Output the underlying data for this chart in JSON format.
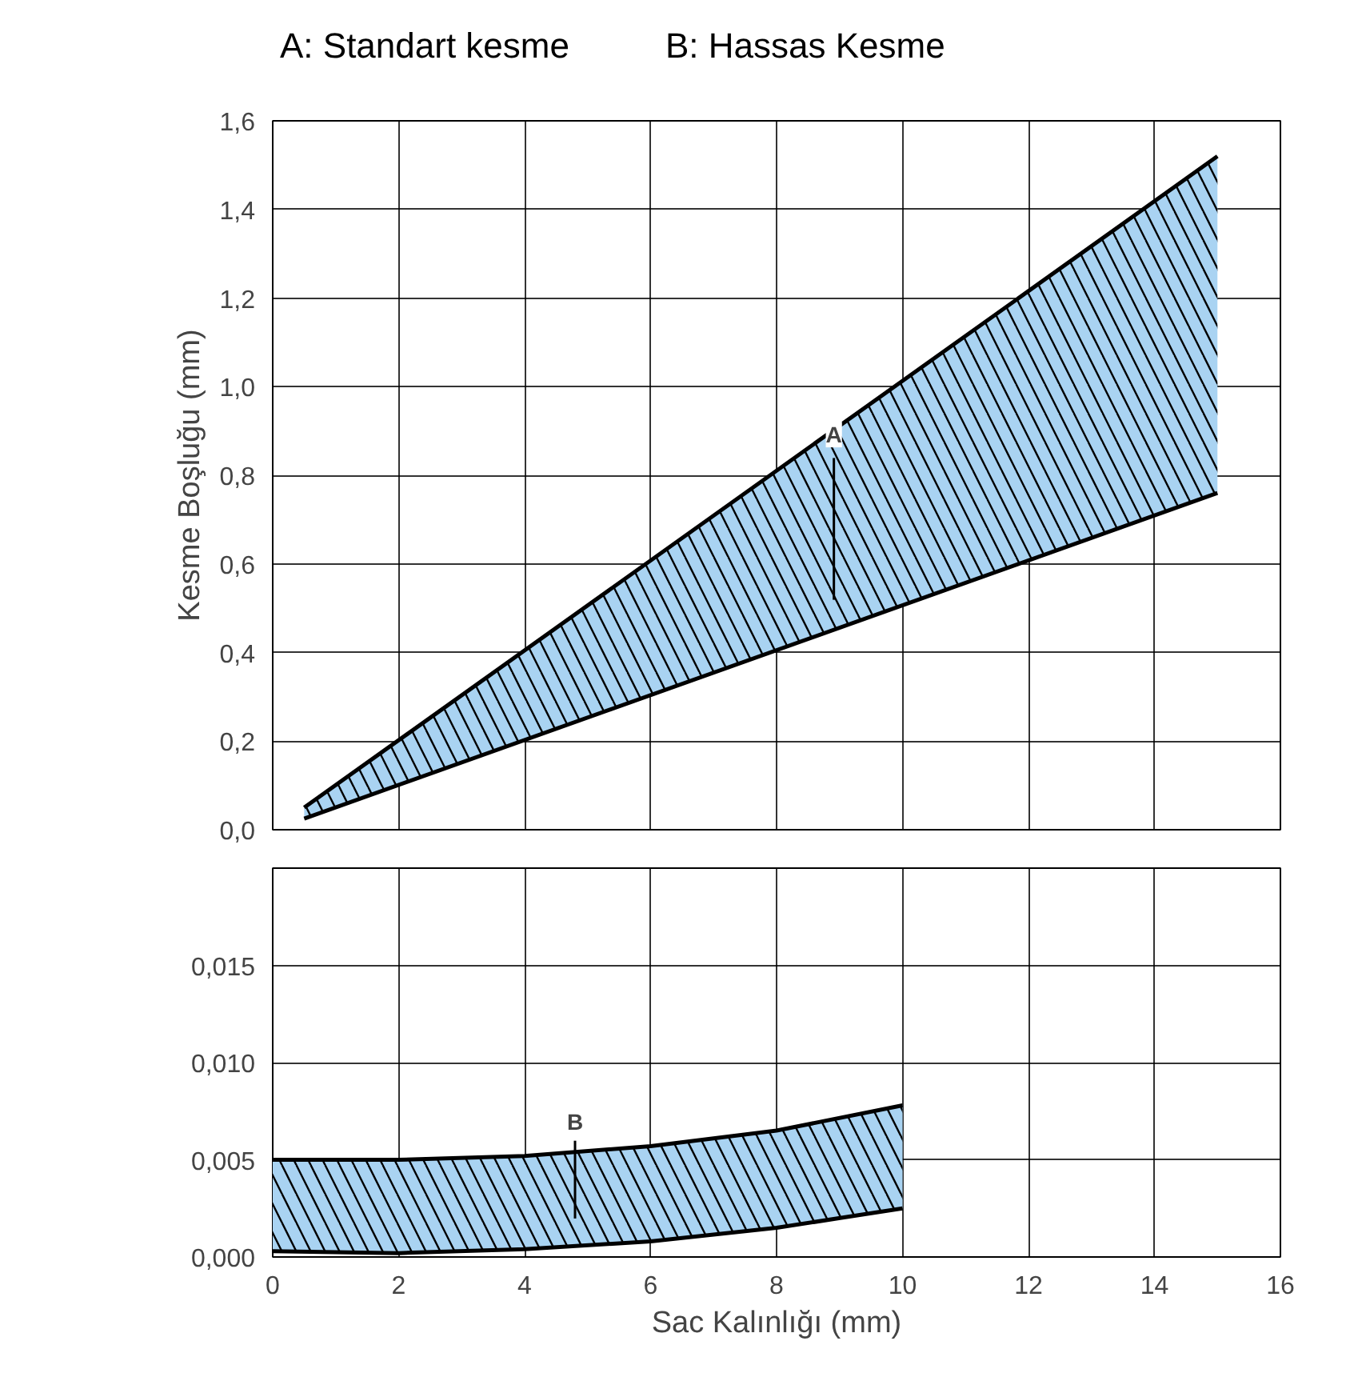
{
  "chart_data": [
    {
      "type": "area",
      "annotations": [
        "A: Standart kesme",
        "B: Hassas Kesme",
        "A"
      ],
      "ylabel": "Kesme Boşluğu (mm)",
      "series": [
        {
          "type": "line",
          "color": "#000000",
          "x": [
            0.5,
            15
          ],
          "values": [
            0.025,
            0.76
          ]
        },
        {
          "color": "#a9d3f2",
          "x": [
            0.5,
            15
          ],
          "values": [
            0.05,
            1.52
          ]
        }
      ],
      "xlim": [
        0,
        16
      ],
      "xticks": [
        0,
        2,
        4,
        6,
        8,
        10,
        12,
        14,
        16
      ],
      "ylim": [
        0,
        1.6
      ],
      "yticks": [
        {
          "value": 0,
          "label": "0,0"
        },
        {
          "value": 0.2,
          "label": "0,2"
        },
        {
          "value": 0.4,
          "label": "0,4"
        },
        {
          "value": 0.6,
          "label": "0,6"
        },
        {
          "value": 0.8,
          "label": "0,8"
        },
        {
          "value": 1.0,
          "label": "1,0"
        },
        {
          "value": 1.2,
          "label": "1,2"
        },
        {
          "value": 1.4,
          "label": "1,4"
        },
        {
          "value": 1.6,
          "label": "1,6"
        }
      ],
      "grid": true,
      "tick_labels": "y"
    },
    {
      "type": "area",
      "annotations": [
        "B"
      ],
      "xlabel": "Sac Kalınlığı (mm)",
      "series": [
        {
          "type": "line",
          "color": "#000000",
          "x": [
            0,
            2,
            4,
            6,
            8,
            10
          ],
          "values": [
            0.0003,
            0.0002,
            0.0004,
            0.0008,
            0.0015,
            0.0025
          ]
        },
        {
          "color": "#a9d3f2",
          "x": [
            0,
            2,
            4,
            6,
            8,
            10
          ],
          "values": [
            0.005,
            0.005,
            0.0052,
            0.0057,
            0.0065,
            0.0078
          ]
        }
      ],
      "xlim": [
        0,
        16
      ],
      "xticks": [
        0,
        2,
        4,
        6,
        8,
        10,
        12,
        14,
        16
      ],
      "ylim": [
        0,
        0.02
      ],
      "yticks": [
        {
          "value": 0,
          "label": "0,000"
        },
        {
          "value": 0.005,
          "label": "0,005"
        },
        {
          "value": 0.01,
          "label": "0,010"
        },
        {
          "value": 0.015,
          "label": "0,015"
        }
      ],
      "grid": true
    }
  ]
}
